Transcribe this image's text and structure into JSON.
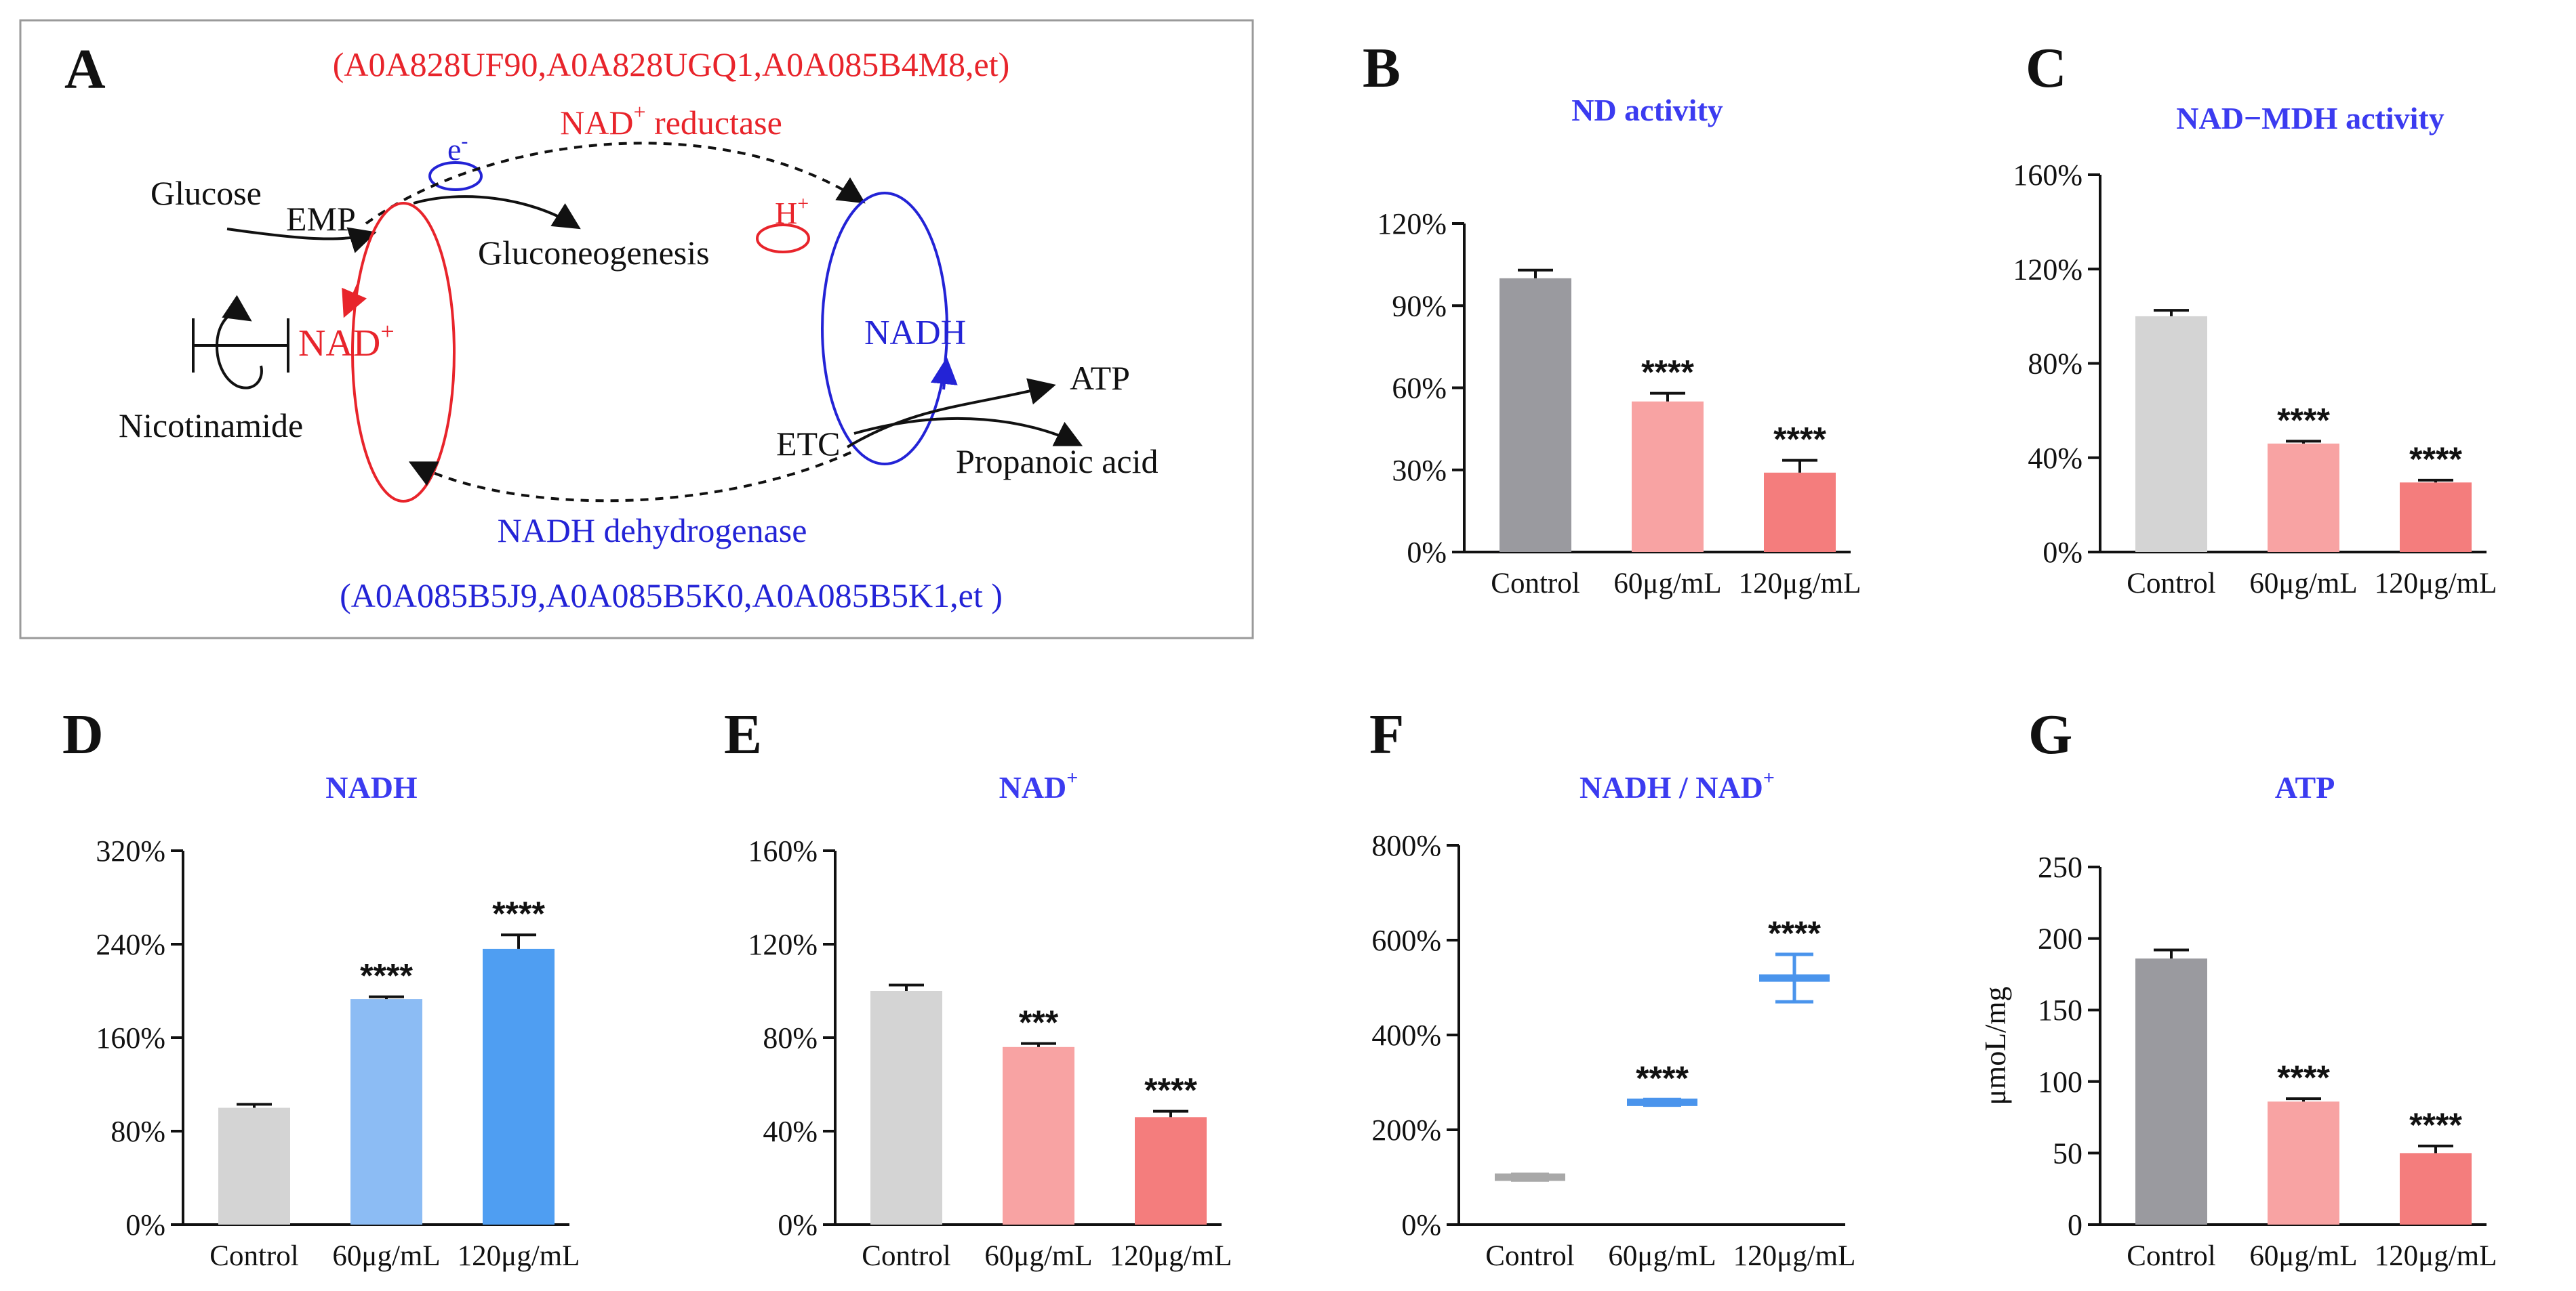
{
  "diagram": {
    "panel_label": "A",
    "top_ids": "(A0A828UF90,A0A828UGQ1,A0A085B4M8,et)",
    "nad_reductase": "NAD",
    "nad_reductase_sup": "+",
    "nad_reductase_tail": " reductase",
    "electron": "e",
    "electron_sup": "-",
    "glucose": "Glucose",
    "emp": "EMP",
    "gluconeogenesis": "Gluconeogenesis",
    "proton": "H",
    "proton_sup": "+",
    "nad": "NAD",
    "nad_sup": "+",
    "nadh": "NADH",
    "nicotinamide": "Nicotinamide",
    "atp": "ATP",
    "etc": "ETC",
    "propanoic": "Propanoic acid",
    "nadh_dehydrogenase": "NADH dehydrogenase",
    "bottom_ids": "(A0A085B5J9,A0A085B5K0,A0A085B5K1,et )"
  },
  "colors": {
    "red": "#e8242b",
    "blue": "#2323d6",
    "title_blue": "#3b3bf0",
    "dark_gray": "#9a9a9f",
    "light_gray": "#d4d4d4",
    "pink": "#f8a3a3",
    "salmon": "#f47d7d",
    "light_blue": "#8cbcf4",
    "blue_bar": "#4f9ef2",
    "line_blue": "#4a94ec",
    "gray_line": "#a8a8a8"
  },
  "chart_data": [
    {
      "panel": "B",
      "type": "bar",
      "title": "ND activity",
      "title_sup": "",
      "categories": [
        "Control",
        "60μg/mL",
        "120μg/mL"
      ],
      "values": [
        100,
        55,
        29
      ],
      "errors": [
        3,
        3,
        4.5
      ],
      "significance": [
        "",
        "****",
        "****"
      ],
      "ylim": [
        0,
        120
      ],
      "yticks": [
        0,
        30,
        60,
        90,
        120
      ],
      "ytick_labels": [
        "0%",
        "30%",
        "60%",
        "90%",
        "120%"
      ],
      "ylabel": "",
      "colors": [
        "dark_gray",
        "pink",
        "salmon"
      ]
    },
    {
      "panel": "C",
      "type": "bar",
      "title": "NAD−MDH activity",
      "title_sup": "",
      "categories": [
        "Control",
        "60μg/mL",
        "120μg/mL"
      ],
      "values": [
        100,
        46,
        29.5
      ],
      "errors": [
        2.5,
        1,
        1
      ],
      "significance": [
        "",
        "****",
        "****"
      ],
      "ylim": [
        0,
        160
      ],
      "yticks": [
        0,
        40,
        80,
        120,
        160
      ],
      "ytick_labels": [
        "0%",
        "40%",
        "80%",
        "120%",
        "160%"
      ],
      "ylabel": "",
      "colors": [
        "light_gray",
        "pink",
        "salmon"
      ]
    },
    {
      "panel": "D",
      "type": "bar",
      "title": "NADH",
      "title_sup": "",
      "categories": [
        "Control",
        "60μg/mL",
        "120μg/mL"
      ],
      "values": [
        100,
        193,
        236
      ],
      "errors": [
        3,
        2,
        12
      ],
      "significance": [
        "",
        "****",
        "****"
      ],
      "ylim": [
        0,
        320
      ],
      "yticks": [
        0,
        80,
        160,
        240,
        320
      ],
      "ytick_labels": [
        "0%",
        "80%",
        "160%",
        "240%",
        "320%"
      ],
      "ylabel": "",
      "colors": [
        "light_gray",
        "light_blue",
        "blue_bar"
      ]
    },
    {
      "panel": "E",
      "type": "bar",
      "title": "NAD",
      "title_sup": "+",
      "categories": [
        "Control",
        "60μg/mL",
        "120μg/mL"
      ],
      "values": [
        100,
        76,
        46
      ],
      "errors": [
        2.5,
        1.5,
        2.5
      ],
      "significance": [
        "",
        "***",
        "****"
      ],
      "ylim": [
        0,
        160
      ],
      "yticks": [
        0,
        40,
        80,
        120,
        160
      ],
      "ytick_labels": [
        "0%",
        "40%",
        "80%",
        "120%",
        "160%"
      ],
      "ylabel": "",
      "colors": [
        "light_gray",
        "pink",
        "salmon"
      ]
    },
    {
      "panel": "F",
      "type": "scatter",
      "title": "NADH / NAD",
      "title_sup": "+",
      "categories": [
        "Control",
        "60μg/mL",
        "120μg/mL"
      ],
      "values": [
        100,
        258,
        520
      ],
      "errors": [
        6,
        6,
        50
      ],
      "significance": [
        "",
        "****",
        "****"
      ],
      "ylim": [
        0,
        800
      ],
      "yticks": [
        0,
        200,
        400,
        600,
        800
      ],
      "ytick_labels": [
        "0%",
        "200%",
        "400%",
        "600%",
        "800%"
      ],
      "ylabel": "",
      "colors": [
        "gray_line",
        "line_blue",
        "line_blue"
      ]
    },
    {
      "panel": "G",
      "type": "bar",
      "title": "ATP",
      "title_sup": "",
      "categories": [
        "Control",
        "60μg/mL",
        "120μg/mL"
      ],
      "values": [
        186,
        86,
        50
      ],
      "errors": [
        6,
        2,
        5
      ],
      "significance": [
        "",
        "****",
        "****"
      ],
      "ylim": [
        0,
        250
      ],
      "yticks": [
        0,
        50,
        100,
        150,
        200,
        250
      ],
      "ytick_labels": [
        "0",
        "50",
        "100",
        "150",
        "200",
        "250"
      ],
      "ylabel": "μmoL/mg",
      "colors": [
        "dark_gray",
        "pink",
        "salmon"
      ]
    }
  ]
}
